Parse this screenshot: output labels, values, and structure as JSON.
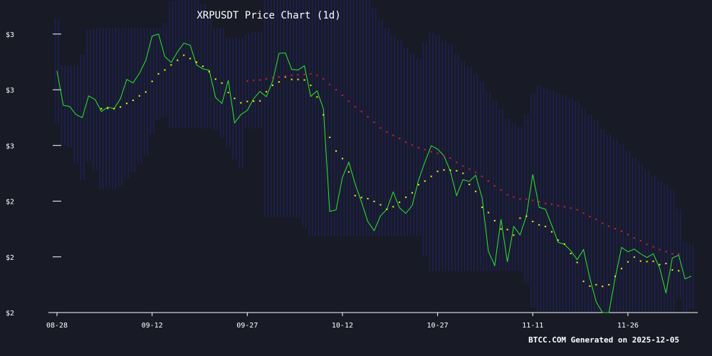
{
  "chart_data": {
    "type": "line",
    "title": "XRPUSDT Price Chart (1d)",
    "xlabel": "",
    "ylabel": "",
    "x_tick_labels": [
      "08-28",
      "09-12",
      "09-27",
      "10-12",
      "10-27",
      "11-11",
      "11-26"
    ],
    "y_tick_labels": [
      "$3",
      "$3",
      "$3",
      "$2",
      "$2",
      "$2"
    ],
    "y_ticks": [
      3.0,
      2.8,
      2.6,
      2.4,
      2.2,
      2.0
    ],
    "ylim": [
      2.0,
      3.02
    ],
    "grid": false,
    "colors": {
      "background": "#181b26",
      "price_line": "#2ee82e",
      "ma_short": "#ffff00",
      "ma_long": "#e02020",
      "band": "#2a2aa0"
    },
    "series": [
      {
        "values": [
          2.868,
          2.744,
          2.74,
          2.711,
          2.7,
          2.778,
          2.765,
          2.722,
          2.738,
          2.732,
          2.768,
          2.837,
          2.825,
          2.859,
          2.905,
          2.993,
          3.0,
          2.919,
          2.898,
          2.936,
          2.967,
          2.96,
          2.889,
          2.875,
          2.87,
          2.772,
          2.751,
          2.834,
          2.681,
          2.711,
          2.726,
          2.768,
          2.794,
          2.775,
          2.83,
          2.931,
          2.932,
          2.873,
          2.871,
          2.886,
          2.776,
          2.796,
          2.732,
          2.363,
          2.369,
          2.485,
          2.54,
          2.462,
          2.397,
          2.327,
          2.294,
          2.347,
          2.371,
          2.433,
          2.376,
          2.356,
          2.385,
          2.476,
          2.541,
          2.599,
          2.587,
          2.563,
          2.508,
          2.42,
          2.477,
          2.471,
          2.493,
          2.413,
          2.22,
          2.169,
          2.335,
          2.182,
          2.309,
          2.279,
          2.347,
          2.496,
          2.378,
          2.371,
          2.313,
          2.252,
          2.245,
          2.222,
          2.19,
          2.226,
          2.124,
          2.038,
          2.0,
          2.0,
          2.126,
          2.234,
          2.218,
          2.228,
          2.211,
          2.198,
          2.211,
          2.16,
          2.07,
          2.196,
          2.206,
          2.121,
          2.131
        ]
      },
      {
        "values": [
          null,
          null,
          null,
          null,
          null,
          null,
          null,
          2.732,
          2.733,
          2.732,
          2.738,
          2.751,
          2.762,
          2.778,
          2.792,
          2.83,
          2.857,
          2.871,
          2.889,
          2.906,
          2.924,
          2.912,
          2.899,
          2.884,
          2.865,
          2.838,
          2.824,
          2.79,
          2.769,
          2.753,
          2.758,
          2.759,
          2.76,
          2.793,
          2.816,
          2.828,
          2.846,
          2.837,
          2.837,
          2.835,
          2.816,
          2.774,
          2.71,
          2.629,
          2.58,
          2.553,
          2.505,
          2.42,
          2.413,
          2.409,
          2.399,
          2.387,
          2.371,
          2.38,
          2.396,
          2.414,
          2.43,
          2.459,
          2.472,
          2.489,
          2.507,
          2.512,
          2.511,
          2.509,
          2.5,
          2.46,
          2.435,
          2.378,
          2.359,
          2.33,
          2.3,
          2.298,
          2.278,
          2.339,
          2.346,
          2.327,
          2.315,
          2.309,
          2.29,
          2.26,
          2.246,
          2.212,
          2.18,
          2.112,
          2.095,
          2.1,
          2.094,
          2.1,
          2.13,
          2.158,
          2.182,
          2.199,
          2.185,
          2.183,
          2.184,
          2.172,
          2.176,
          2.153,
          2.15
        ]
      },
      {
        "values": [
          null,
          null,
          null,
          null,
          null,
          null,
          null,
          null,
          null,
          null,
          null,
          null,
          null,
          null,
          null,
          null,
          null,
          null,
          null,
          null,
          null,
          null,
          null,
          null,
          null,
          null,
          null,
          null,
          null,
          null,
          2.831,
          2.834,
          2.835,
          2.839,
          2.843,
          2.846,
          2.849,
          2.852,
          2.854,
          2.855,
          2.857,
          2.852,
          2.839,
          2.819,
          2.8,
          2.78,
          2.759,
          2.739,
          2.722,
          2.703,
          2.683,
          2.663,
          2.648,
          2.636,
          2.625,
          2.612,
          2.602,
          2.592,
          2.585,
          2.577,
          2.572,
          2.562,
          2.555,
          2.539,
          2.526,
          2.515,
          2.503,
          2.489,
          2.472,
          2.455,
          2.44,
          2.423,
          2.415,
          2.408,
          2.407,
          2.403,
          2.398,
          2.392,
          2.389,
          2.384,
          2.38,
          2.375,
          2.369,
          2.357,
          2.345,
          2.335,
          2.32,
          2.31,
          2.301,
          2.292,
          2.28,
          2.268,
          2.258,
          2.245,
          2.236,
          2.226,
          2.219,
          2.211,
          2.21
        ]
      }
    ]
  },
  "footer": "BTCC.COM Generated on 2025-12-05"
}
